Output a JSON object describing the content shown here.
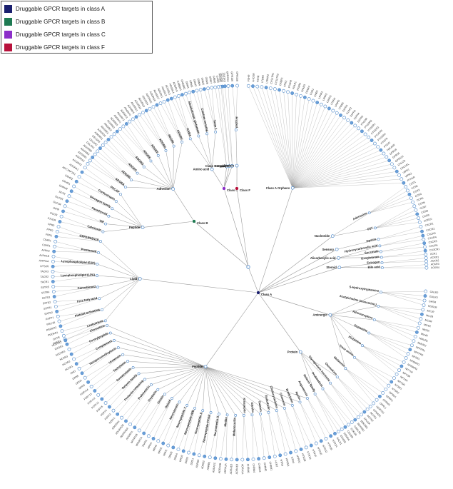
{
  "legend": {
    "items": [
      {
        "label": "Druggable GPCR targets in class A",
        "color": "#1a1f6e"
      },
      {
        "label": "Druggable GPCR targets in class B",
        "color": "#1e7a52"
      },
      {
        "label": "Druggable GPCR targets in class C",
        "color": "#8c2ec9"
      },
      {
        "label": "Druggable GPCR targets in class F",
        "color": "#b8123c"
      }
    ]
  },
  "colors": {
    "link": "#9a9a9a",
    "node_stroke": "#4a86c8",
    "leaf_fill": "#6a9fd8",
    "leaf_empty": "#ffffff"
  },
  "tree": {
    "root": "",
    "classes": [
      {
        "name": "Class A",
        "color": "#1a1f6e",
        "families": [
          {
            "name": "Peptide",
            "subfamilies": [
              "Angiotensin",
              "Apelin",
              "Bradykinin",
              "Chemerin",
              "Cholecystokinin",
              "Endothelin",
              "Galanin",
              "Ghrelin",
              "Kisspeptin",
              "Melanocortin",
              "Motilin",
              "Neuromedin U",
              "Neuropeptide FF/AF",
              "Neuropeptide S",
              "Neuropeptide W/B",
              "Neuropeptide Y",
              "Neurotensin",
              "Opioid",
              "Orexin",
              "Oxytocin",
              "Prokineticin",
              "Prolactin-releasing",
              "Relaxin family",
              "Somatostatin",
              "Tachykinin",
              "Urotensin",
              "Vasopressin/Oxytocin",
              "Complement",
              "Formylpeptide",
              "Chemokine"
            ]
          },
          {
            "name": "Protein",
            "subfamilies": [
              "Chemokine",
              "Glycoprotein hormone",
              "Prokineticin",
              "Relaxin family"
            ]
          },
          {
            "name": "Aminergic",
            "subfamilies": [
              "5-Hydroxytryptamine",
              "Acetylcholine (muscarinic)",
              "Adrenoceptors",
              "Dopamine",
              "Histamine",
              "Trace amine",
              "Melatonin"
            ]
          },
          {
            "name": "Lipid",
            "subfamilies": [
              "Leukotriene",
              "Platelet-activating",
              "Free fatty acid",
              "Cannabinoid",
              "Lysophospholipid (LPA)",
              "Lysophospholipid (S1P)",
              "Prostanoid",
              "GPR18/55/119"
            ]
          },
          {
            "name": "Nucleotide",
            "subfamilies": [
              "Adenosine",
              "P2Y"
            ]
          },
          {
            "name": "Sensory",
            "subfamilies": [
              "Opsins"
            ]
          },
          {
            "name": "Alicarboxylic acid",
            "subfamilies": [
              "Hydroxycarboxylic acid",
              "Succinate",
              "Oxoglutarate"
            ]
          },
          {
            "name": "Steroid",
            "subfamilies": [
              "Estrogen",
              "Bile acid"
            ]
          },
          {
            "name": "Class A Orphans",
            "subfamilies": []
          }
        ]
      },
      {
        "name": "Class B",
        "color": "#1e7a52",
        "families": [
          {
            "name": "Peptide",
            "subfamilies": [
              "Calcitonin",
              "VIP",
              "Parathyroid",
              "Glucagon family",
              "Corticotropin",
              "PACAP"
            ]
          },
          {
            "name": "Adhesion",
            "subfamilies": [
              "ADGRA",
              "ADGRB",
              "ADGRC",
              "ADGRD",
              "ADGRE",
              "ADGRF",
              "ADGRG",
              "ADGRL",
              "ADGRV"
            ]
          }
        ]
      },
      {
        "name": "Class C",
        "color": "#8c2ec9",
        "families": [
          {
            "name": "Amino acid",
            "subfamilies": [
              "GABA",
              "Metabotropic glutamate",
              "Calcium-sensing",
              "Taste 1"
            ]
          },
          {
            "name": "Ion",
            "subfamilies": []
          },
          {
            "name": "Sensory",
            "subfamilies": []
          },
          {
            "name": "Class C Orphans",
            "subfamilies": []
          }
        ]
      },
      {
        "name": "Class F",
        "color": "#b8123c",
        "families": [
          {
            "name": "Protein",
            "subfamilies": [
              "Frizzled"
            ]
          }
        ]
      }
    ]
  },
  "leaf_labels": [
    "HTR1A",
    "HTR1B",
    "HTR1D",
    "HTR1E",
    "HTR1F",
    "HTR2A",
    "HTR2B",
    "HTR2C",
    "HTR4",
    "HTR5A",
    "HTR6",
    "HTR7",
    "CHRM1",
    "CHRM2",
    "CHRM3",
    "CHRM4",
    "CHRM5",
    "ADRA1A",
    "ADRA1B",
    "ADRA1D",
    "ADRA2A",
    "ADRA2B",
    "ADRA2C",
    "ADRB1",
    "ADRB2",
    "ADRB3",
    "DRD1",
    "DRD2",
    "DRD3",
    "DRD4",
    "DRD5",
    "HRH1",
    "HRH2",
    "HRH3",
    "HRH4",
    "TAAR1",
    "MTNR1A",
    "MTNR1B",
    "ADORA1",
    "ADORA2A",
    "ADORA2B",
    "ADORA3",
    "P2RY1",
    "P2RY2",
    "P2RY4",
    "P2RY6",
    "P2RY11",
    "P2RY12",
    "P2RY13",
    "P2RY14",
    "OPN3",
    "OPN4",
    "OPN5",
    "RHO",
    "HCAR1",
    "HCAR2",
    "HCAR3",
    "SUCNR1",
    "OXGR1",
    "GPER1",
    "GPBAR1",
    "AGTR1",
    "AGTR2",
    "APLNR",
    "BDKRB1",
    "BDKRB2",
    "CMKLR1",
    "CCKAR",
    "CCKBR",
    "EDNRA",
    "EDNRB",
    "GALR1",
    "GALR2",
    "GALR3",
    "GHSR",
    "KISS1R",
    "MC1R",
    "MC2R",
    "MC3R",
    "MC4R",
    "MC5R",
    "MLNR",
    "NMUR1",
    "NMUR2",
    "NPFFR1",
    "NPFFR2",
    "NPSR1",
    "NPBWR1",
    "NPBWR2",
    "NPY1R",
    "NPY2R",
    "NPY4R",
    "NPY5R",
    "NTSR1",
    "NTSR2",
    "OPRD1",
    "OPRK1",
    "OPRM1",
    "OPRL1",
    "HCRTR1",
    "HCRTR2",
    "OXTR",
    "PROKR1",
    "PROKR2",
    "PRLHR",
    "RXFP1",
    "RXFP2",
    "SSTR1",
    "SSTR2",
    "SSTR3",
    "SSTR4",
    "SSTR5",
    "TACR1",
    "TACR2",
    "TACR3",
    "UTS2R",
    "AVPR1A",
    "AVPR1B",
    "AVPR2",
    "C3AR1",
    "C5AR1",
    "FPR1",
    "FPR2",
    "FPR3",
    "CCR1",
    "CCR2",
    "CCR3",
    "CCR4",
    "CCR5",
    "CCR6",
    "CCR7",
    "CCR8",
    "CCR9",
    "CCR10",
    "CXCR1",
    "CXCR2",
    "CXCR3",
    "CXCR4",
    "CXCR5",
    "CXCR6",
    "CX3CR1",
    "XCR1",
    "ACKR1",
    "ACKR2",
    "ACKR3",
    "ACKR4",
    "FSHR",
    "LHCGR",
    "TSHR",
    "LTB4R",
    "LTB4R2",
    "CYSLTR1",
    "CYSLTR2",
    "OXER1",
    "FPR2",
    "PTAFR",
    "FFAR1",
    "FFAR2",
    "FFAR3",
    "FFAR4",
    "CNR1",
    "CNR2",
    "LPAR1",
    "LPAR2",
    "LPAR3",
    "LPAR4",
    "LPAR5",
    "LPAR6",
    "S1PR1",
    "S1PR2",
    "S1PR3",
    "S1PR4",
    "S1PR5",
    "PTGDR",
    "PTGDR2",
    "PTGER1",
    "PTGER2",
    "PTGER3",
    "PTGER4",
    "PTGFR",
    "PTGIR",
    "TBXA2R",
    "GPR18",
    "GPR55",
    "GPR119",
    "CALCR",
    "CALCRL",
    "VIPR1",
    "VIPR2",
    "PTH1R",
    "PTH2R",
    "GCGR",
    "GIPR",
    "GLP1R",
    "GLP2R",
    "SCTR",
    "GHRHR",
    "CRHR1",
    "CRHR2",
    "ADCYAP1R1",
    "ADGRA1",
    "ADGRA2",
    "ADGRA3",
    "ADGRB1",
    "ADGRB2",
    "ADGRB3",
    "CELSR1",
    "CELSR2",
    "CELSR3",
    "ADGRD1",
    "ADGRD2",
    "ADGRE1",
    "ADGRE2",
    "ADGRE3",
    "ADGRE5",
    "ADGRF1",
    "ADGRF2",
    "ADGRF3",
    "ADGRF4",
    "ADGRF5",
    "ADGRG1",
    "ADGRG2",
    "ADGRG3",
    "ADGRG4",
    "ADGRG5",
    "ADGRG6",
    "ADGRG7",
    "ADGRL1",
    "ADGRL2",
    "ADGRL3",
    "ADGRL4",
    "ADGRV1",
    "GABBR1",
    "GABBR2",
    "GRM1",
    "GRM2",
    "GRM3",
    "GRM4",
    "GRM5",
    "GRM6",
    "GRM7",
    "GRM8",
    "CASR",
    "TAS1R1",
    "TAS1R2",
    "TAS1R3",
    "GPRC6A",
    "GPR156",
    "GPR158",
    "GPR179",
    "GPRC5A",
    "GPRC5B",
    "GPRC5C",
    "GPRC5D",
    "FZD1",
    "FZD2",
    "FZD3",
    "FZD4",
    "FZD5",
    "FZD6",
    "FZD7",
    "FZD8",
    "FZD9",
    "FZD10",
    "SMO"
  ]
}
